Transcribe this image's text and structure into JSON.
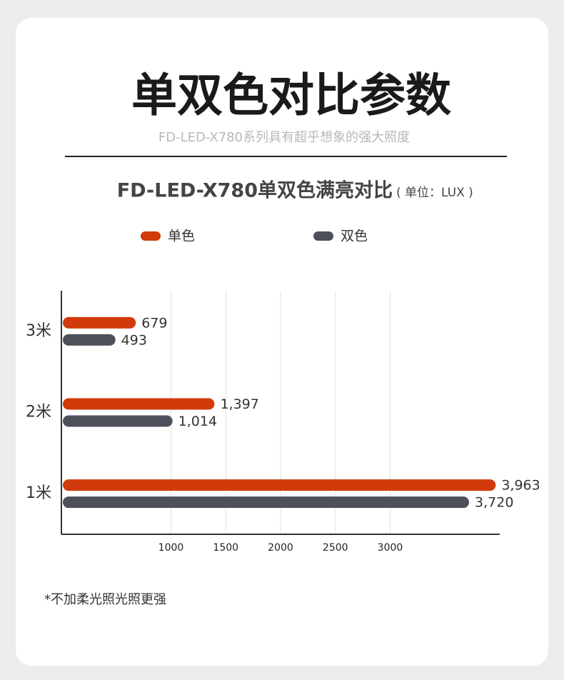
{
  "header": {
    "title": "单双色对比参数",
    "subtitle": "FD-LED-X780系列具有超乎想象的强大照度"
  },
  "chart_data": {
    "type": "hbar",
    "title": "FD-LED-X780单双色满亮对比",
    "unit": "( 单位：LUX )",
    "categories": [
      "3米",
      "2米",
      "1米"
    ],
    "series": [
      {
        "name": "单色",
        "color": "#d13a0a",
        "values": [
          679,
          1397,
          3963
        ],
        "value_labels": [
          "679",
          "1,397",
          "3,963"
        ]
      },
      {
        "name": "双色",
        "color": "#4d5059",
        "values": [
          493,
          1014,
          3720
        ],
        "value_labels": [
          "493",
          "1,014",
          "3,720"
        ]
      }
    ],
    "xlim": [
      0,
      4000
    ],
    "xticks": [
      1000,
      1500,
      2000,
      2500,
      3000
    ],
    "grid": true
  },
  "footnote": "*不加柔光照光照更强"
}
